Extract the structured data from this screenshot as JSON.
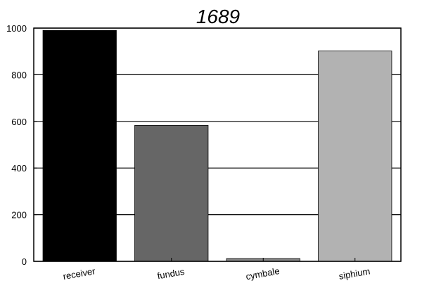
{
  "chart_data": {
    "type": "bar",
    "title": "1689",
    "categories": [
      "receiver",
      "fundus",
      "cymbale",
      "siphium"
    ],
    "values": [
      990,
      583,
      12,
      902
    ],
    "colors": [
      "#000000",
      "#666666",
      "#888888",
      "#b2b2b2"
    ],
    "ylim": [
      0,
      1000
    ],
    "yticks": [
      0,
      200,
      400,
      600,
      800,
      1000
    ],
    "grid": "horizontal",
    "xlabel": "",
    "ylabel": ""
  }
}
